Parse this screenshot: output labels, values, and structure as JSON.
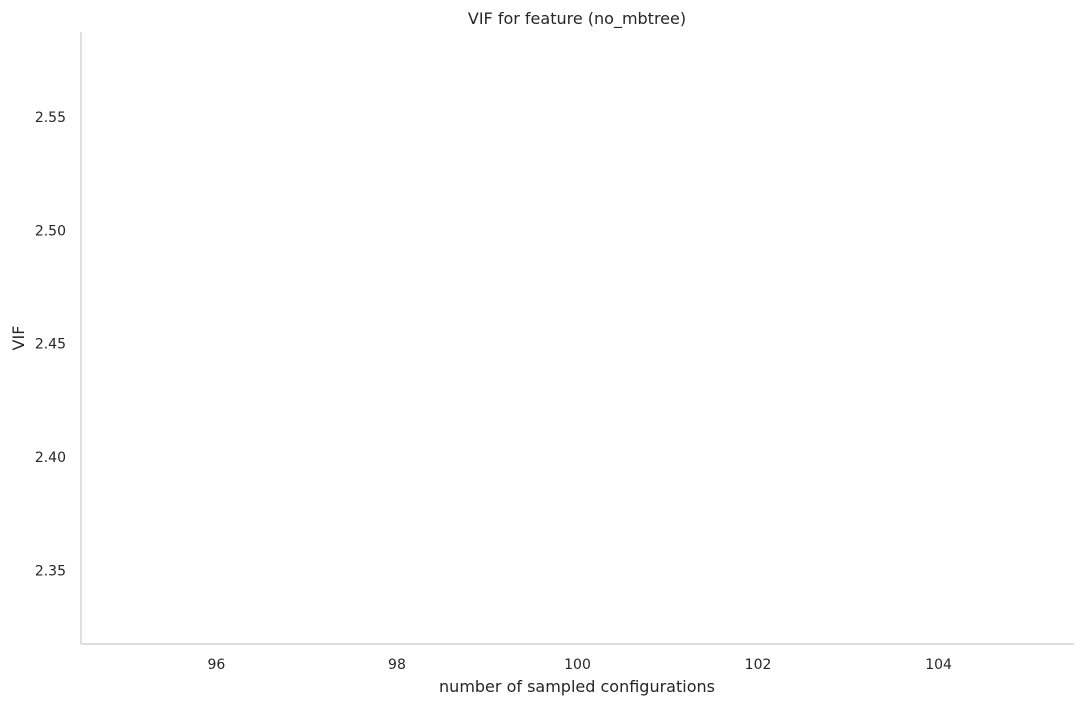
{
  "chart_data": {
    "type": "line",
    "title": "VIF for feature (no_mbtree)",
    "xlabel": "number of sampled configurations",
    "ylabel": "VIF",
    "xlim": [
      94.5,
      105.5
    ],
    "ylim": [
      2.3175,
      2.5875
    ],
    "x_ticks": [
      96,
      98,
      100,
      102,
      104
    ],
    "y_ticks": [
      2.35,
      2.4,
      2.45,
      2.5,
      2.55
    ],
    "y_tick_labels": [
      "2.35",
      "2.40",
      "2.45",
      "2.50",
      "2.55"
    ],
    "grid": false,
    "series": []
  }
}
